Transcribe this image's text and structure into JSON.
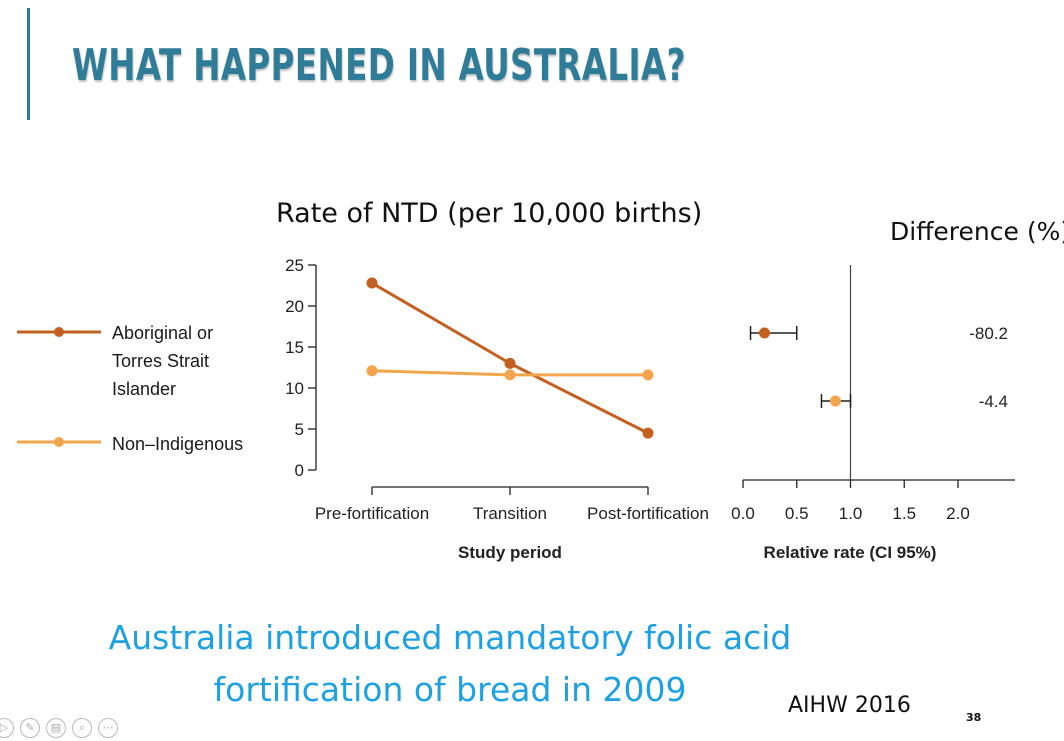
{
  "slide": {
    "title": "WHAT HAPPENED IN AUSTRALIA?",
    "caption": "Australia introduced mandatory folic acid fortification of bread in 2009",
    "source": "AIHW 2016",
    "page_number": "38",
    "accent_color": "#2e7c98",
    "caption_color": "#1da1e2"
  },
  "legend": [
    {
      "label": "Aboriginal or Torres Strait Islander",
      "color": "#c4601f"
    },
    {
      "label": "Non–Indigenous",
      "color": "#f2a54c"
    }
  ],
  "chart_data": [
    {
      "type": "line",
      "title": "Rate of NTD (per 10,000 births)",
      "xlabel": "Study period",
      "ylabel": "",
      "categories": [
        "Pre-fortification",
        "Transition",
        "Post-fortification"
      ],
      "ylim": [
        0,
        25
      ],
      "yticks": [
        "0",
        "5",
        "10",
        "15",
        "20",
        "25"
      ],
      "grid": false,
      "legend_position": "left",
      "series": [
        {
          "name": "Aboriginal or Torres Strait Islander",
          "color": "#c4601f",
          "values": [
            22.8,
            13.0,
            4.5
          ]
        },
        {
          "name": "Non–Indigenous",
          "color": "#f2a54c",
          "values": [
            12.1,
            11.6,
            11.6
          ]
        }
      ]
    },
    {
      "type": "scatter",
      "title": "Difference (%)",
      "xlabel": "Relative rate (CI 95%)",
      "xlim": [
        0,
        2.0
      ],
      "xticks": [
        "0.0",
        "0.5",
        "1.0",
        "1.5",
        "2.0"
      ],
      "reference_line": 1.0,
      "series": [
        {
          "name": "Aboriginal or Torres Strait Islander",
          "color": "#c4601f",
          "estimate": 0.2,
          "ci": [
            0.07,
            0.5
          ],
          "difference": "-80.2"
        },
        {
          "name": "Non–Indigenous",
          "color": "#f2a54c",
          "estimate": 0.86,
          "ci": [
            0.73,
            1.0
          ],
          "difference": "-4.4"
        }
      ]
    }
  ],
  "toolbar": {
    "icons": [
      "play-icon",
      "pen-icon",
      "slides-icon",
      "zoom-icon",
      "more-icon"
    ],
    "glyphs": [
      "▷",
      "✎",
      "▤",
      "⌕",
      "⋯"
    ]
  }
}
